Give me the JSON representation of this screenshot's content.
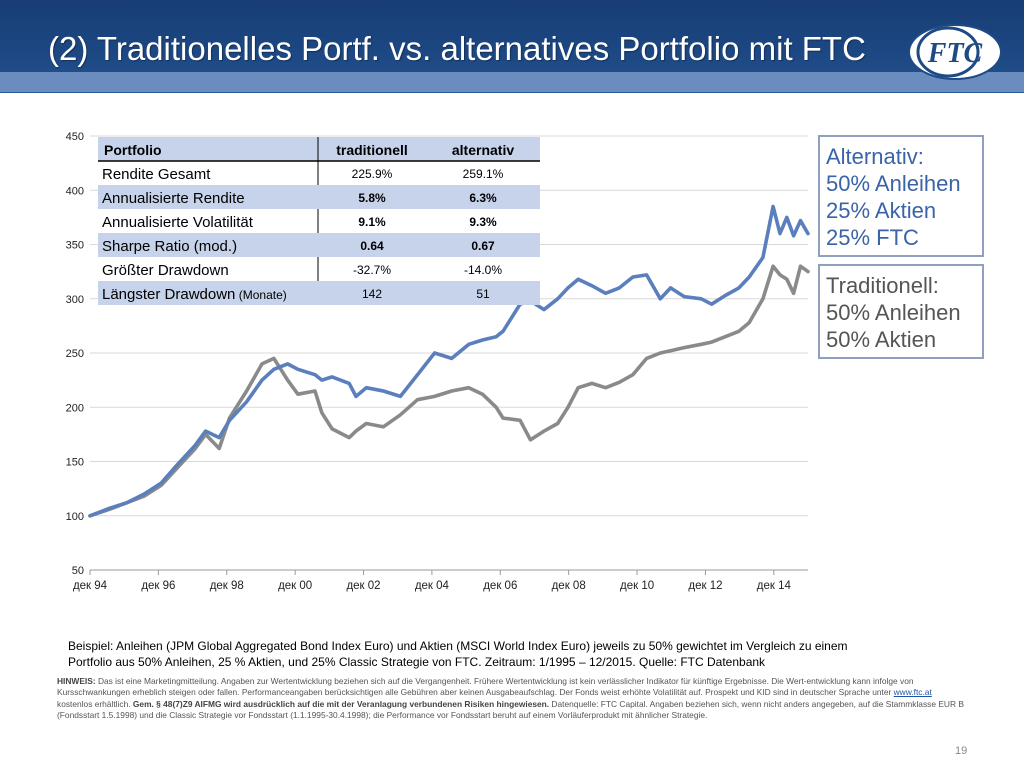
{
  "slide": {
    "title": "(2) Traditionelles Portf. vs. alternatives Portfolio mit FTC",
    "logo_text": "FTC",
    "page_number": "19"
  },
  "legend": {
    "alternativ": [
      "Alternativ:",
      "50% Anleihen",
      "25% Aktien",
      "25% FTC"
    ],
    "traditionell": [
      "Traditionell:",
      "50% Anleihen",
      "50% Aktien"
    ]
  },
  "caption": {
    "line1": "Beispiel: Anleihen (JPM Global Aggregated Bond Index Euro) und Aktien (MSCI World Index Euro) jeweils zu 50% gewichtet im Vergleich zu einem",
    "line2": "Portfolio aus 50% Anleihen, 25 % Aktien, und 25% Classic Strategie von FTC. Zeitraum: 1/1995 – 12/2015. Quelle: FTC Datenbank"
  },
  "hint": {
    "label": "HINWEIS:",
    "text1": " Das ist eine Marketingmitteilung. Angaben zur Wertentwicklung beziehen sich auf die Vergangenheit. Frühere Wertentwicklung ist kein verlässlicher Indikator für künftige Ergebnisse. Die Wert-entwicklung kann infolge von Kursschwankungen erheblich steigen oder fallen. Performanceangaben berücksichtigen alle Gebühren aber keinen Ausgabeaufschlag. Der Fonds weist erhöhte Volatilität auf. Prospekt und KID sind in deutscher Sprache unter ",
    "link": "www.ftc.at",
    "text2": " kostenlos erhältlich. ",
    "bold": "Gem.  § 48(7)Z9 AIFMG wird ausdrücklich auf die mit der Veranlagung verbundenen Risiken hingewiesen.",
    "text3": " Datenquelle: FTC Capital. Angaben beziehen sich, wenn nicht anders angegeben, auf die Stammklasse EUR B (Fondsstart 1.5.1998) und die Classic Strategie vor Fondsstart (1.1.1995-30.4.1998); die Performance vor Fondsstart beruht auf einem Vorläuferprodukt mit ähnlicher Strategie."
  },
  "colors": {
    "alternativ": "#5b7fbd",
    "traditionell": "#8a8a8a",
    "header_blue": "#1e4a86",
    "table_band": "#c6d3ea",
    "grid": "#d9d9d9"
  },
  "chart_data": {
    "type": "line",
    "title": "",
    "xlabel": "",
    "ylabel": "",
    "ylim": [
      50,
      450
    ],
    "yticks": [
      50,
      100,
      150,
      200,
      250,
      300,
      350,
      400,
      450
    ],
    "xticks": [
      "дек 94",
      "дек 96",
      "дек 98",
      "дек 00",
      "дек 02",
      "дек 04",
      "дек 06",
      "дек 08",
      "дек 10",
      "дек 12",
      "дек 14"
    ],
    "xlim": [
      1994.92,
      2015.92
    ],
    "grid": true,
    "x_years": [
      1994.92,
      1995.5,
      1996.0,
      1996.5,
      1997.0,
      1997.5,
      1998.0,
      1998.3,
      1998.7,
      1999.0,
      1999.5,
      1999.95,
      2000.3,
      2000.7,
      2001.0,
      2001.5,
      2001.7,
      2002.0,
      2002.5,
      2002.7,
      2003.0,
      2003.5,
      2004.0,
      2004.5,
      2005.0,
      2005.5,
      2006.0,
      2006.4,
      2006.8,
      2007.0,
      2007.5,
      2007.8,
      2008.2,
      2008.6,
      2008.9,
      2009.2,
      2009.6,
      2010.0,
      2010.4,
      2010.8,
      2011.2,
      2011.6,
      2011.9,
      2012.3,
      2012.8,
      2013.1,
      2013.5,
      2013.9,
      2014.2,
      2014.6,
      2014.9,
      2015.1,
      2015.3,
      2015.5,
      2015.7,
      2015.92
    ],
    "series": [
      {
        "name": "alternativ",
        "values": [
          100,
          107,
          112,
          120,
          130,
          148,
          165,
          178,
          172,
          188,
          205,
          225,
          235,
          240,
          235,
          230,
          225,
          228,
          222,
          210,
          218,
          215,
          210,
          230,
          250,
          245,
          258,
          262,
          265,
          270,
          295,
          298,
          290,
          300,
          310,
          318,
          312,
          305,
          310,
          320,
          322,
          300,
          310,
          302,
          300,
          295,
          303,
          310,
          320,
          338,
          385,
          360,
          375,
          358,
          372,
          360
        ]
      },
      {
        "name": "traditionell",
        "values": [
          100,
          106,
          112,
          118,
          128,
          145,
          162,
          175,
          162,
          190,
          215,
          240,
          245,
          225,
          212,
          215,
          195,
          180,
          172,
          178,
          185,
          182,
          193,
          207,
          210,
          215,
          218,
          212,
          200,
          190,
          188,
          170,
          178,
          185,
          200,
          218,
          222,
          218,
          223,
          230,
          245,
          250,
          252,
          255,
          258,
          260,
          265,
          270,
          278,
          300,
          330,
          322,
          318,
          305,
          330,
          325
        ]
      }
    ],
    "table": {
      "headers": [
        "Portfolio",
        "traditionell",
        "alternativ"
      ],
      "rows": [
        [
          "Rendite Gesamt",
          "225.9%",
          "259.1%"
        ],
        [
          "Annualisierte Rendite",
          "5.8%",
          "6.3%"
        ],
        [
          "Annualisierte Volatilität",
          "9.1%",
          "9.3%"
        ],
        [
          "Sharpe Ratio (mod.)",
          "0.64",
          "0.67"
        ],
        [
          "Größter Drawdown",
          "-32.7%",
          "-14.0%"
        ],
        [
          "Längster Drawdown",
          "142",
          "51"
        ]
      ],
      "last_row_suffix": "(Monate)",
      "bold_rows": [
        1,
        2,
        3
      ]
    }
  }
}
